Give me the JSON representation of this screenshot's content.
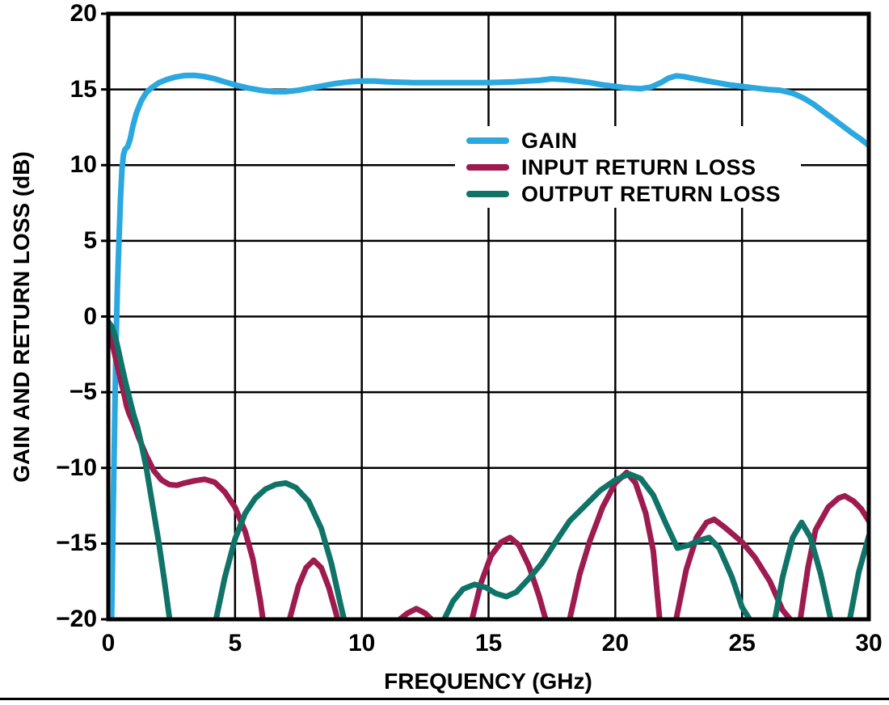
{
  "chart_data": {
    "type": "line",
    "title": "",
    "xlabel": "FREQUENCY (GHz)",
    "ylabel": "GAIN AND RETURN LOSS (dB)",
    "xlim": [
      0,
      30
    ],
    "ylim": [
      -20,
      20
    ],
    "x_ticks": [
      0,
      5,
      10,
      15,
      20,
      25,
      30
    ],
    "y_ticks": [
      20,
      15,
      10,
      5,
      0,
      -5,
      -10,
      -15,
      -20
    ],
    "x_tick_labels": [
      "0",
      "5",
      "10",
      "15",
      "20",
      "25",
      "30"
    ],
    "y_tick_labels": [
      "20",
      "15",
      "10",
      "5",
      "0",
      "−5",
      "−10",
      "−15",
      "−20"
    ],
    "grid": true,
    "legend_position": "upper-right-inside",
    "frame_color": "#000000",
    "grid_color": "#000000",
    "series": [
      {
        "name": "GAIN",
        "color": "#2BA8DF",
        "segments": [
          [
            [
              0.13,
              -20
            ],
            [
              0.2,
              -12
            ],
            [
              0.26,
              -6
            ],
            [
              0.31,
              -1.5
            ],
            [
              0.36,
              2
            ],
            [
              0.42,
              5
            ],
            [
              0.48,
              7.8
            ],
            [
              0.54,
              9.7
            ],
            [
              0.6,
              10.7
            ],
            [
              0.66,
              11.05
            ],
            [
              0.76,
              11.2
            ],
            [
              0.86,
              11.7
            ],
            [
              0.96,
              12.5
            ],
            [
              1.1,
              13.4
            ],
            [
              1.3,
              14.25
            ],
            [
              1.5,
              14.8
            ],
            [
              1.7,
              15.1
            ],
            [
              2.0,
              15.45
            ],
            [
              2.3,
              15.65
            ],
            [
              2.6,
              15.8
            ],
            [
              3.0,
              15.92
            ],
            [
              3.4,
              15.93
            ],
            [
              3.8,
              15.85
            ],
            [
              4.2,
              15.7
            ],
            [
              4.6,
              15.5
            ],
            [
              5.0,
              15.3
            ],
            [
              5.5,
              15.1
            ],
            [
              6.0,
              14.95
            ],
            [
              6.5,
              14.85
            ],
            [
              7.0,
              14.85
            ],
            [
              7.5,
              14.95
            ],
            [
              8.0,
              15.1
            ],
            [
              8.5,
              15.25
            ],
            [
              9.0,
              15.4
            ],
            [
              9.5,
              15.5
            ],
            [
              10.0,
              15.55
            ],
            [
              10.5,
              15.55
            ],
            [
              11.0,
              15.5
            ],
            [
              12.0,
              15.45
            ],
            [
              13.0,
              15.45
            ],
            [
              14.0,
              15.45
            ],
            [
              15.0,
              15.45
            ],
            [
              16.0,
              15.5
            ],
            [
              16.5,
              15.55
            ],
            [
              17.0,
              15.6
            ],
            [
              17.5,
              15.7
            ],
            [
              18.0,
              15.65
            ],
            [
              18.5,
              15.55
            ],
            [
              19.0,
              15.45
            ],
            [
              19.5,
              15.3
            ],
            [
              20.0,
              15.2
            ],
            [
              20.5,
              15.1
            ],
            [
              21.0,
              15.05
            ],
            [
              21.4,
              15.15
            ],
            [
              21.8,
              15.45
            ],
            [
              22.1,
              15.75
            ],
            [
              22.4,
              15.9
            ],
            [
              22.7,
              15.85
            ],
            [
              23.0,
              15.75
            ],
            [
              23.5,
              15.6
            ],
            [
              24.0,
              15.45
            ],
            [
              24.5,
              15.3
            ],
            [
              25.0,
              15.2
            ],
            [
              25.5,
              15.1
            ],
            [
              26.0,
              15.0
            ],
            [
              26.5,
              14.95
            ],
            [
              27.0,
              14.75
            ],
            [
              27.4,
              14.45
            ],
            [
              27.8,
              14.05
            ],
            [
              28.2,
              13.55
            ],
            [
              28.6,
              13.05
            ],
            [
              29.0,
              12.55
            ],
            [
              29.4,
              12.05
            ],
            [
              29.7,
              11.7
            ],
            [
              30.0,
              11.3
            ]
          ]
        ]
      },
      {
        "name": "INPUT RETURN LOSS",
        "color": "#9E1B4F",
        "segments": [
          [
            [
              0.05,
              -1.0
            ],
            [
              0.2,
              -2.1
            ],
            [
              0.35,
              -3.2
            ],
            [
              0.5,
              -4.3
            ],
            [
              0.62,
              -5.1
            ],
            [
              0.72,
              -5.9
            ],
            [
              0.82,
              -6.4
            ],
            [
              1.0,
              -7.1
            ],
            [
              1.2,
              -8.0
            ],
            [
              1.5,
              -9.2
            ],
            [
              1.8,
              -10.2
            ],
            [
              2.1,
              -10.8
            ],
            [
              2.4,
              -11.1
            ],
            [
              2.7,
              -11.15
            ],
            [
              3.0,
              -11.0
            ],
            [
              3.4,
              -10.85
            ],
            [
              3.8,
              -10.75
            ],
            [
              4.2,
              -10.95
            ],
            [
              4.6,
              -11.6
            ],
            [
              5.0,
              -12.6
            ],
            [
              5.4,
              -14.2
            ],
            [
              5.7,
              -16.0
            ],
            [
              6.0,
              -18.8
            ],
            [
              6.1,
              -20
            ]
          ],
          [
            [
              7.15,
              -20
            ],
            [
              7.5,
              -17.8
            ],
            [
              7.8,
              -16.6
            ],
            [
              8.1,
              -16.1
            ],
            [
              8.4,
              -16.6
            ],
            [
              8.7,
              -17.9
            ],
            [
              9.0,
              -19.7
            ],
            [
              9.05,
              -20
            ]
          ],
          [
            [
              11.5,
              -20
            ],
            [
              11.8,
              -19.6
            ],
            [
              12.15,
              -19.3
            ],
            [
              12.5,
              -19.6
            ],
            [
              12.75,
              -20
            ]
          ],
          [
            [
              14.35,
              -20
            ],
            [
              14.7,
              -17.6
            ],
            [
              15.1,
              -15.8
            ],
            [
              15.5,
              -14.9
            ],
            [
              15.85,
              -14.6
            ],
            [
              16.2,
              -15.1
            ],
            [
              16.6,
              -16.5
            ],
            [
              17.0,
              -18.5
            ],
            [
              17.25,
              -20
            ]
          ],
          [
            [
              18.2,
              -20
            ],
            [
              18.6,
              -17.0
            ],
            [
              19.0,
              -14.8
            ],
            [
              19.5,
              -12.6
            ],
            [
              20.0,
              -11.0
            ],
            [
              20.45,
              -10.3
            ],
            [
              20.8,
              -11.0
            ],
            [
              21.2,
              -13.0
            ],
            [
              21.5,
              -15.5
            ],
            [
              21.75,
              -20
            ]
          ],
          [
            [
              22.4,
              -20
            ],
            [
              22.8,
              -16.7
            ],
            [
              23.2,
              -14.6
            ],
            [
              23.6,
              -13.6
            ],
            [
              23.9,
              -13.4
            ],
            [
              24.3,
              -13.9
            ],
            [
              25.0,
              -14.9
            ],
            [
              25.5,
              -15.9
            ],
            [
              26.1,
              -17.5
            ],
            [
              26.6,
              -19.4
            ],
            [
              26.9,
              -20
            ]
          ],
          [
            [
              27.3,
              -20
            ],
            [
              27.6,
              -16.6
            ],
            [
              27.9,
              -14.1
            ],
            [
              28.4,
              -12.6
            ],
            [
              28.8,
              -12.0
            ],
            [
              29.05,
              -11.85
            ],
            [
              29.4,
              -12.2
            ],
            [
              29.7,
              -12.7
            ],
            [
              30.0,
              -13.5
            ]
          ]
        ]
      },
      {
        "name": "OUTPUT RETURN LOSS",
        "color": "#0F7368",
        "segments": [
          [
            [
              0.0,
              -0.35
            ],
            [
              0.15,
              -0.7
            ],
            [
              0.3,
              -1.5
            ],
            [
              0.42,
              -2.4
            ],
            [
              0.55,
              -3.4
            ],
            [
              0.7,
              -4.5
            ],
            [
              0.85,
              -5.5
            ],
            [
              1.0,
              -6.5
            ],
            [
              1.15,
              -7.3
            ],
            [
              1.3,
              -8.4
            ],
            [
              1.5,
              -10.0
            ],
            [
              1.75,
              -12.5
            ],
            [
              2.0,
              -15.0
            ],
            [
              2.2,
              -17.3
            ],
            [
              2.42,
              -20
            ]
          ],
          [
            [
              4.25,
              -20
            ],
            [
              4.6,
              -17.2
            ],
            [
              5.0,
              -14.7
            ],
            [
              5.4,
              -13.0
            ],
            [
              5.8,
              -12.0
            ],
            [
              6.2,
              -11.4
            ],
            [
              6.6,
              -11.1
            ],
            [
              7.0,
              -11.0
            ],
            [
              7.4,
              -11.3
            ],
            [
              7.9,
              -12.2
            ],
            [
              8.4,
              -14.0
            ],
            [
              8.8,
              -16.3
            ],
            [
              9.2,
              -19.3
            ],
            [
              9.3,
              -20
            ]
          ],
          [
            [
              13.25,
              -20
            ],
            [
              13.6,
              -18.8
            ],
            [
              14.0,
              -18.0
            ],
            [
              14.45,
              -17.7
            ],
            [
              14.9,
              -17.9
            ],
            [
              15.3,
              -18.3
            ],
            [
              15.7,
              -18.5
            ],
            [
              16.1,
              -18.2
            ],
            [
              16.6,
              -17.3
            ],
            [
              17.1,
              -16.3
            ],
            [
              17.6,
              -15.0
            ],
            [
              18.2,
              -13.5
            ],
            [
              18.8,
              -12.5
            ],
            [
              19.4,
              -11.5
            ],
            [
              20.0,
              -10.8
            ],
            [
              20.55,
              -10.4
            ],
            [
              21.0,
              -10.7
            ],
            [
              21.5,
              -11.8
            ],
            [
              22.0,
              -13.7
            ],
            [
              22.45,
              -15.3
            ],
            [
              22.9,
              -15.1
            ],
            [
              23.3,
              -14.8
            ],
            [
              23.7,
              -14.6
            ],
            [
              24.1,
              -15.3
            ],
            [
              24.6,
              -17.2
            ],
            [
              25.0,
              -19.2
            ],
            [
              25.3,
              -20
            ]
          ],
          [
            [
              26.3,
              -20
            ],
            [
              26.6,
              -17.2
            ],
            [
              27.0,
              -14.6
            ],
            [
              27.35,
              -13.6
            ],
            [
              27.7,
              -14.6
            ],
            [
              28.1,
              -17.0
            ],
            [
              28.5,
              -20
            ]
          ],
          [
            [
              29.25,
              -20
            ],
            [
              29.6,
              -16.9
            ],
            [
              30.0,
              -14.5
            ]
          ]
        ]
      }
    ]
  }
}
